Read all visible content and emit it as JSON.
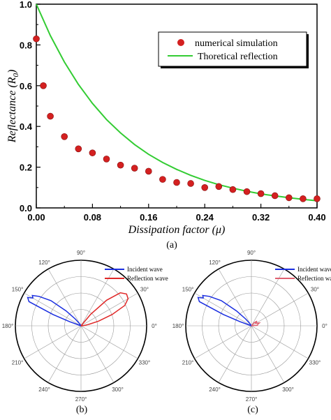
{
  "figure": {
    "panel_labels": [
      "(a)",
      "(b)",
      "(c)"
    ]
  },
  "chart_data": [
    {
      "type": "line",
      "panel": "(a)",
      "xlabel": "Dissipation factor (μ)",
      "ylabel": "Reflectance (R0)",
      "xlim": [
        0.0,
        0.4
      ],
      "ylim": [
        0.0,
        1.0
      ],
      "xticks": [
        "0.00",
        "0.08",
        "0.16",
        "0.24",
        "0.32",
        "0.40"
      ],
      "yticks": [
        "0.0",
        "0.2",
        "0.4",
        "0.6",
        "0.8",
        "1.0"
      ],
      "grid": false,
      "legend_position": "top-right",
      "series": [
        {
          "name": "numerical simulation",
          "style": "scatter",
          "color": "#d42020",
          "x": [
            0.0,
            0.01,
            0.02,
            0.04,
            0.06,
            0.08,
            0.1,
            0.12,
            0.14,
            0.16,
            0.18,
            0.2,
            0.22,
            0.24,
            0.26,
            0.28,
            0.3,
            0.32,
            0.34,
            0.36,
            0.38,
            0.4
          ],
          "y": [
            0.83,
            0.6,
            0.45,
            0.35,
            0.29,
            0.27,
            0.24,
            0.21,
            0.195,
            0.18,
            0.14,
            0.125,
            0.12,
            0.1,
            0.105,
            0.09,
            0.08,
            0.07,
            0.06,
            0.05,
            0.045,
            0.045
          ]
        },
        {
          "name": "Thoretical reflection",
          "style": "line",
          "color": "#33cc33",
          "x": [
            0.0,
            0.02,
            0.04,
            0.06,
            0.08,
            0.1,
            0.12,
            0.14,
            0.16,
            0.18,
            0.2,
            0.22,
            0.24,
            0.26,
            0.28,
            0.3,
            0.32,
            0.34,
            0.36,
            0.38,
            0.4
          ],
          "y": [
            1.0,
            0.846,
            0.716,
            0.606,
            0.513,
            0.434,
            0.368,
            0.311,
            0.263,
            0.223,
            0.189,
            0.16,
            0.135,
            0.114,
            0.097,
            0.082,
            0.069,
            0.059,
            0.05,
            0.042,
            0.035
          ]
        }
      ]
    },
    {
      "type": "polar",
      "panel": "(b)",
      "angle_labels": [
        "0°",
        "30°",
        "90°",
        "120°",
        "150°",
        "180°",
        "210°",
        "240°",
        "270°",
        "300°",
        "330°"
      ],
      "legend_position": "top-right",
      "series": [
        {
          "name": "Incident wave",
          "color": "#1a2ee0",
          "theta": [
            150,
            145,
            140,
            135,
            130,
            125,
            160,
            158,
            155,
            152,
            148
          ],
          "r": [
            0.92,
            0.85,
            0.65,
            0.35,
            0.15,
            0.05,
            0.2,
            0.5,
            0.95,
            1.0,
            0.95
          ]
        },
        {
          "name": "Reflection wave",
          "color": "#e02828",
          "theta": [
            15,
            20,
            25,
            30,
            35,
            40,
            45,
            50,
            10,
            5
          ],
          "r": [
            0.3,
            0.55,
            0.8,
            0.9,
            0.92,
            0.85,
            0.6,
            0.25,
            0.12,
            0.05
          ]
        }
      ]
    },
    {
      "type": "polar",
      "panel": "(c)",
      "angle_labels": [
        "0°",
        "30°",
        "90°",
        "120°",
        "150°",
        "180°",
        "210°",
        "240°",
        "270°",
        "300°",
        "330°"
      ],
      "legend_position": "top-right",
      "series": [
        {
          "name": "Incident wave",
          "color": "#1a2ee0",
          "theta": [
            150,
            145,
            140,
            135,
            130,
            125,
            160,
            158,
            155,
            152,
            148
          ],
          "r": [
            0.92,
            0.85,
            0.65,
            0.35,
            0.15,
            0.05,
            0.2,
            0.5,
            0.95,
            1.0,
            0.95
          ]
        },
        {
          "name": "Reflection wave",
          "color": "#e06070",
          "theta": [
            10,
            20,
            30,
            40,
            50,
            5
          ],
          "r": [
            0.1,
            0.14,
            0.08,
            0.12,
            0.06,
            0.1
          ]
        }
      ]
    }
  ]
}
